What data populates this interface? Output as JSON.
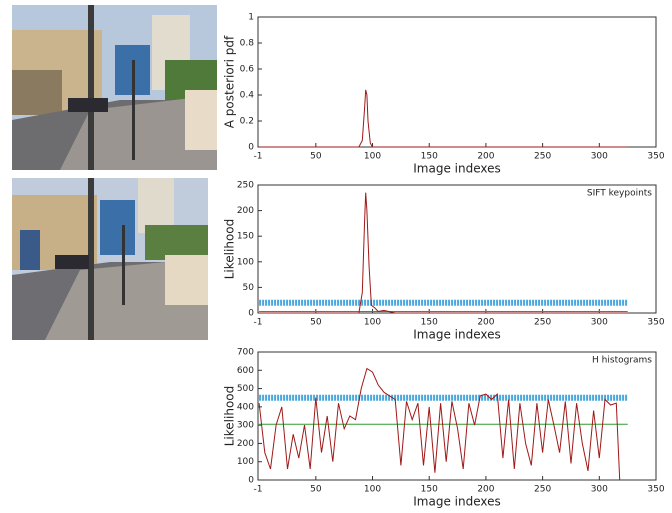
{
  "chart_data": [
    {
      "type": "line",
      "ylabel": "A posteriori pdf",
      "xlabel": "Image indexes",
      "xlim": [
        -1,
        350
      ],
      "xticks": [
        -1,
        50,
        100,
        150,
        200,
        250,
        300,
        350
      ],
      "ylim": [
        0,
        1
      ],
      "yticks": [
        0,
        0.2,
        0.4,
        0.6,
        0.8,
        1
      ],
      "series": [
        {
          "color": "#a01818",
          "x": [
            0,
            88,
            91,
            93,
            94,
            95,
            96,
            98,
            100,
            325
          ],
          "values": [
            0,
            0,
            0.05,
            0.3,
            0.44,
            0.4,
            0.2,
            0.03,
            0,
            0
          ]
        }
      ]
    },
    {
      "type": "line",
      "ylabel": "Likelihood",
      "xlabel": "Image indexes",
      "annotation": "SIFT keypoints",
      "xlim": [
        -1,
        350
      ],
      "xticks": [
        -1,
        50,
        100,
        150,
        200,
        250,
        300,
        350
      ],
      "ylim": [
        0,
        250
      ],
      "yticks": [
        0,
        50,
        100,
        150,
        200,
        250
      ],
      "series": [
        {
          "color": "#4aa8dc",
          "x": [
            0,
            325
          ],
          "values": [
            20,
            20
          ]
        },
        {
          "color": "#2f9a2f",
          "x": [
            0,
            325
          ],
          "values": [
            3,
            3
          ]
        },
        {
          "color": "#a01818",
          "x": [
            0,
            88,
            91,
            93,
            94,
            95,
            97,
            99,
            102,
            105,
            110,
            120,
            325
          ],
          "values": [
            0,
            0,
            40,
            180,
            235,
            200,
            90,
            15,
            10,
            3,
            5,
            0,
            0
          ]
        }
      ]
    },
    {
      "type": "line",
      "ylabel": "Likelihood",
      "xlabel": "Image indexes",
      "annotation": "H histograms",
      "xlim": [
        -1,
        350
      ],
      "xticks": [
        -1,
        50,
        100,
        150,
        200,
        250,
        300,
        350
      ],
      "ylim": [
        0,
        700
      ],
      "yticks": [
        0,
        100,
        200,
        300,
        400,
        500,
        600,
        700
      ],
      "series": [
        {
          "color": "#4aa8dc",
          "x": [
            0,
            325
          ],
          "values": [
            450,
            450
          ]
        },
        {
          "color": "#2f9a2f",
          "x": [
            0,
            325
          ],
          "values": [
            305,
            305
          ]
        },
        {
          "color": "#a01818",
          "x": [
            0,
            5,
            10,
            15,
            20,
            25,
            30,
            35,
            40,
            45,
            50,
            55,
            60,
            65,
            70,
            75,
            80,
            85,
            90,
            95,
            100,
            105,
            110,
            115,
            120,
            125,
            130,
            135,
            140,
            145,
            150,
            155,
            160,
            165,
            170,
            175,
            180,
            185,
            190,
            195,
            200,
            205,
            210,
            215,
            220,
            225,
            230,
            235,
            240,
            245,
            250,
            255,
            260,
            265,
            270,
            275,
            280,
            285,
            290,
            295,
            300,
            305,
            310,
            315,
            318
          ],
          "values": [
            420,
            150,
            60,
            300,
            400,
            60,
            250,
            120,
            300,
            60,
            450,
            150,
            350,
            100,
            420,
            280,
            350,
            330,
            500,
            610,
            590,
            520,
            480,
            460,
            440,
            80,
            430,
            330,
            420,
            80,
            400,
            40,
            420,
            100,
            430,
            280,
            60,
            420,
            300,
            460,
            470,
            440,
            470,
            120,
            440,
            60,
            420,
            200,
            80,
            420,
            150,
            440,
            300,
            150,
            430,
            90,
            420,
            200,
            50,
            380,
            120,
            440,
            410,
            420,
            0
          ]
        }
      ]
    }
  ]
}
